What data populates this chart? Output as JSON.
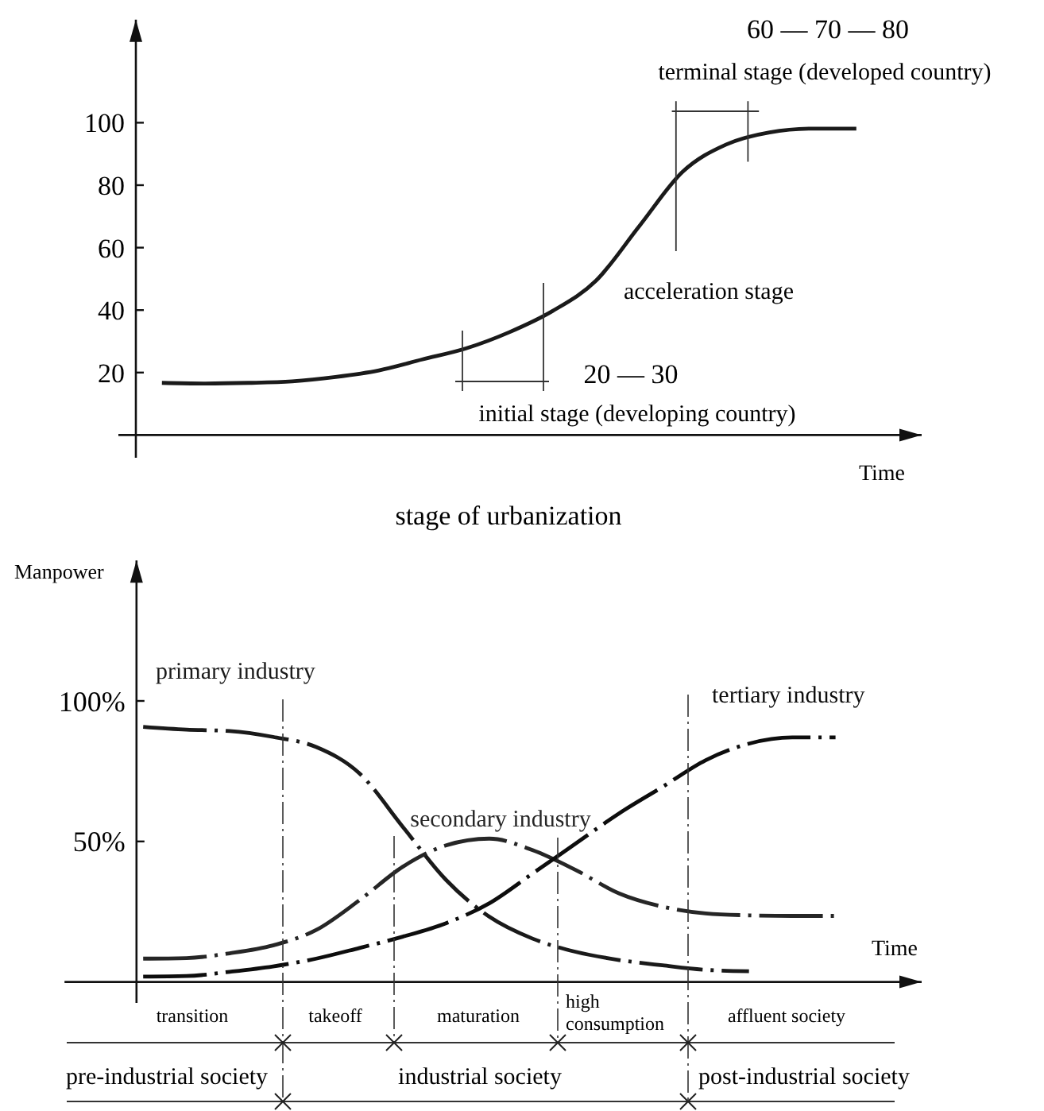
{
  "chart_data": [
    {
      "type": "line",
      "title": "stage of urbanization",
      "xlabel": "Time",
      "tick_labels": "y",
      "categories": [
        null,
        null,
        null,
        null,
        null,
        null,
        null,
        null,
        null,
        null,
        null,
        null,
        null,
        null,
        null,
        null,
        null
      ],
      "ylim": [
        0,
        133
      ],
      "yticks": [
        20,
        40,
        60,
        80,
        100
      ],
      "series": [
        {
          "color": "#1a1a1a",
          "values": [
            16.7,
            16.5,
            16.7,
            17.2,
            18.6,
            20.7,
            24.2,
            27.7,
            32.9,
            39.7,
            49.4,
            66.9,
            84.3,
            93,
            96.9,
            98.1,
            98.1
          ]
        }
      ],
      "annotations": [
        "60 — 70 — 80",
        "terminal stage (developed country)",
        "acceleration stage",
        "20 — 30",
        "initial stage (developing country)"
      ]
    },
    {
      "type": "line",
      "xlabel": "Time",
      "ylabel": "Manpower",
      "tick_labels": "y",
      "categories": [
        null,
        null,
        null,
        null,
        null,
        null,
        null,
        null,
        null,
        null,
        null,
        null,
        null,
        null,
        null,
        null,
        null
      ],
      "ylim": [
        0,
        150
      ],
      "yticks": [
        {
          "value": 50,
          "label": "50%"
        },
        {
          "value": 100,
          "label": "100%"
        }
      ],
      "series": [
        {
          "name": "primary industry",
          "color": "#1a1a1a",
          "line_style": "dashed",
          "values": [
            90.8,
            89.8,
            89.3,
            87.2,
            83.6,
            74.2,
            55.2,
            36.3,
            23.2,
            15.4,
            10.7,
            7.8,
            5.9,
            4.3,
            3.8,
            null,
            null
          ]
        },
        {
          "name": "secondary industry",
          "color": "#262626",
          "line_style": "dashed",
          "values": [
            8.3,
            8.5,
            10.2,
            13,
            18.5,
            29.1,
            41,
            48.6,
            51,
            46.9,
            39.8,
            31.5,
            26.8,
            24.4,
            23.7,
            23.5,
            23.5
          ]
        },
        {
          "name": "tertiary industry",
          "color": "#0d0d0d",
          "line_style": "dashed",
          "values": [
            1.9,
            2.1,
            3.6,
            5.5,
            8.3,
            12.1,
            16.1,
            20.9,
            28,
            38.6,
            49.3,
            60,
            69.4,
            78.9,
            84.8,
            87,
            87
          ]
        }
      ],
      "annotations": [
        "transition",
        "takeoff",
        "maturation",
        "high consumption",
        "affluent society",
        "pre-industrial society",
        "industrial society",
        "post-industrial society"
      ]
    }
  ]
}
